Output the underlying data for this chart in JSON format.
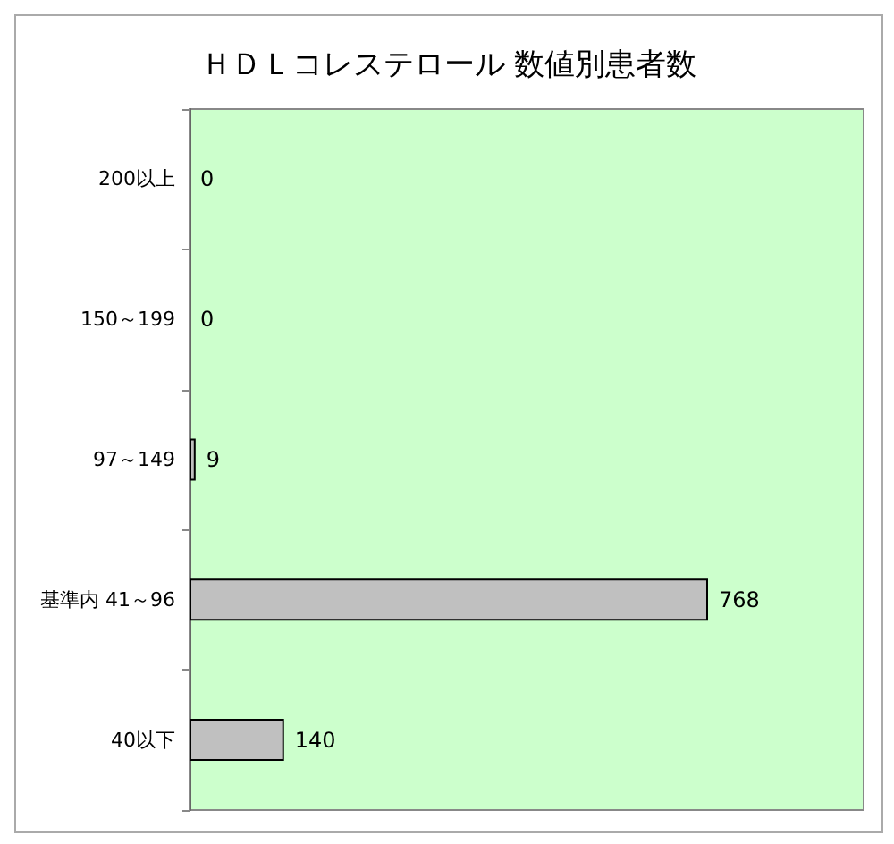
{
  "chart_data": {
    "type": "bar",
    "orientation": "horizontal",
    "title": "ＨＤＬコレステロール 数値別患者数",
    "categories": [
      "200以上",
      "150～199",
      "97～149",
      "基準内 41～96",
      "40以下"
    ],
    "values": [
      0,
      0,
      9,
      768,
      140
    ],
    "color": "#c0c0c0",
    "data_labels": true,
    "tick_labels": "y",
    "grid": false
  }
}
